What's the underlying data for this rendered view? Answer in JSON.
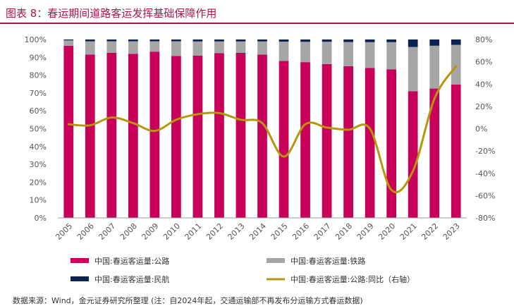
{
  "figure": {
    "title": "图表 8：春运期间道路客运发挥基础保障作用",
    "source": "数据来源：Wind，金元证券研究所整理 (注：自2024年起，交通运输部不再发布分运输方式春运数据)"
  },
  "colors": {
    "accent": "#b0154e",
    "road": "#c8005a",
    "rail": "#a6a6a6",
    "air": "#0b2350",
    "line": "#b8960c"
  },
  "chart_data": {
    "type": "bar",
    "stacked": true,
    "title": "图表 8：春运期间道路客运发挥基础保障作用",
    "categories": [
      "2005",
      "2006",
      "2007",
      "2008",
      "2009",
      "2010",
      "2011",
      "2012",
      "2013",
      "2014",
      "2015",
      "2016",
      "2017",
      "2018",
      "2019",
      "2020",
      "2021",
      "2022",
      "2023"
    ],
    "series": [
      {
        "name": "中国:春运客运量:公路",
        "axis": "left",
        "kind": "bar",
        "values": [
          96.5,
          91.5,
          92.5,
          92.0,
          93.2,
          90.8,
          91.0,
          92.3,
          92.5,
          91.5,
          88.0,
          87.3,
          86.2,
          85.0,
          84.0,
          83.2,
          71.0,
          72.5,
          74.8
        ]
      },
      {
        "name": "中国:春运客运量:铁路",
        "axis": "left",
        "kind": "bar",
        "values": [
          3.0,
          7.5,
          6.5,
          7.0,
          5.8,
          8.2,
          7.9,
          6.6,
          6.4,
          7.4,
          10.8,
          11.4,
          12.5,
          13.6,
          14.5,
          15.3,
          24.8,
          24.0,
          22.2
        ]
      },
      {
        "name": "中国:春运客运量:民航",
        "axis": "left",
        "kind": "bar",
        "values": [
          0.5,
          1.0,
          1.0,
          1.0,
          1.0,
          1.0,
          1.1,
          1.1,
          1.1,
          1.1,
          1.2,
          1.3,
          1.3,
          1.4,
          1.5,
          1.5,
          4.2,
          3.5,
          3.0
        ]
      },
      {
        "name": "中国:春运客运量:公路:同比（右轴）",
        "axis": "right",
        "kind": "line",
        "values": [
          4,
          3,
          10,
          5,
          -2,
          8,
          13,
          14,
          8,
          5,
          -25,
          4,
          1,
          -1,
          0,
          -55,
          -38,
          27,
          56
        ]
      }
    ],
    "left_axis": {
      "min": 0,
      "max": 100,
      "step": 10,
      "ticks": [
        "0%",
        "10%",
        "20%",
        "30%",
        "40%",
        "50%",
        "60%",
        "70%",
        "80%",
        "90%",
        "100%"
      ]
    },
    "right_axis": {
      "min": -80,
      "max": 80,
      "step": 20,
      "ticks": [
        "-80%",
        "-60%",
        "-40%",
        "-20%",
        "0%",
        "20%",
        "40%",
        "60%",
        "80%"
      ]
    },
    "legend": [
      {
        "label": "中国:春运客运量:公路",
        "kind": "bar",
        "color": "#c8005a"
      },
      {
        "label": "中国:春运客运量:铁路",
        "kind": "bar",
        "color": "#a6a6a6"
      },
      {
        "label": "中国:春运客运量:民航",
        "kind": "bar",
        "color": "#0b2350"
      },
      {
        "label": "中国:春运客运量:公路:同比（右轴）",
        "kind": "line",
        "color": "#b8960c"
      }
    ],
    "legend_position": "bottom",
    "grid": false
  }
}
